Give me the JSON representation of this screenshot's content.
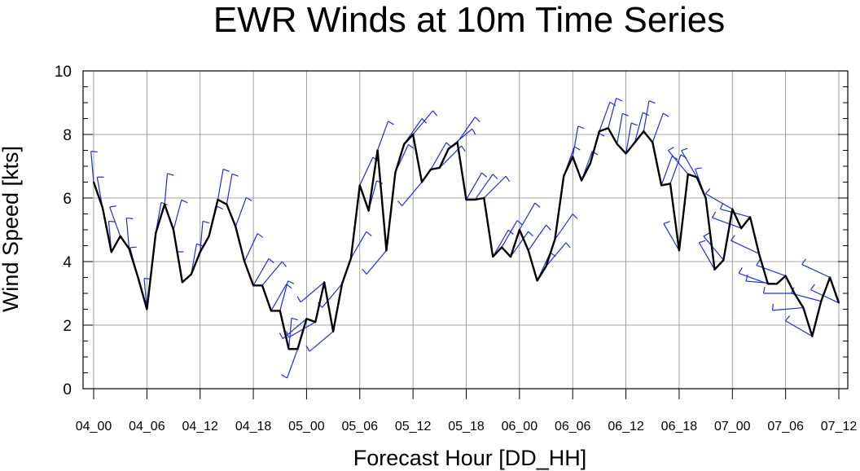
{
  "chart_data": {
    "type": "line",
    "title": "EWR Winds at 10m Time Series",
    "xlabel": "Forecast Hour [DD_HH]",
    "ylabel": "Wind Speed [kts]",
    "ylim": [
      0,
      10
    ],
    "yticks": [
      0,
      2,
      4,
      6,
      8,
      10
    ],
    "xlim": [
      0,
      84
    ],
    "xticks": [
      0,
      6,
      12,
      18,
      24,
      30,
      36,
      42,
      48,
      54,
      60,
      66,
      72,
      78,
      84
    ],
    "xtick_labels": [
      "04_00",
      "04_06",
      "04_12",
      "04_18",
      "05_00",
      "05_06",
      "05_12",
      "05_18",
      "06_00",
      "06_06",
      "06_12",
      "06_18",
      "07_00",
      "07_06",
      "07_12"
    ],
    "grid": true,
    "line_color": "#000000",
    "barb_color": "#1f2fd6",
    "series": [
      {
        "x": [
          0,
          1,
          2,
          3,
          4,
          5,
          6,
          7,
          8,
          9,
          10,
          11,
          12,
          13,
          14,
          15,
          16,
          17,
          18,
          19,
          20,
          21,
          22,
          23,
          24,
          25,
          26,
          27,
          28,
          29,
          30,
          31,
          32,
          33,
          34,
          35,
          36,
          37,
          38,
          39,
          40,
          41,
          42,
          43,
          44,
          45,
          46,
          47,
          48,
          49,
          50,
          51,
          52,
          53,
          54,
          55,
          56,
          57,
          58,
          59,
          60,
          61,
          62,
          63,
          64,
          65,
          66,
          67,
          68,
          69,
          70,
          71,
          72,
          73,
          74,
          75,
          76,
          77,
          78,
          79,
          80,
          81,
          82,
          83,
          84
        ],
        "values": [
          6.5,
          5.7,
          4.3,
          4.8,
          4.4,
          3.5,
          2.5,
          4.9,
          5.8,
          5.0,
          3.35,
          3.6,
          4.3,
          4.8,
          5.95,
          5.8,
          5.1,
          4.0,
          3.25,
          3.25,
          2.45,
          2.45,
          1.25,
          1.25,
          2.2,
          2.1,
          3.35,
          1.8,
          3.3,
          4.1,
          6.4,
          5.6,
          7.5,
          4.35,
          6.8,
          7.7,
          8.0,
          6.5,
          6.9,
          6.95,
          7.55,
          7.75,
          5.95,
          5.95,
          6.0,
          4.15,
          4.45,
          4.15,
          5.0,
          4.35,
          3.4,
          3.85,
          4.7,
          6.7,
          7.3,
          6.55,
          7.1,
          8.1,
          8.2,
          7.7,
          7.4,
          7.75,
          8.1,
          7.75,
          6.4,
          6.45,
          4.35,
          6.75,
          6.65,
          6.0,
          3.75,
          4.05,
          5.65,
          5.05,
          5.4,
          4.25,
          3.3,
          3.3,
          3.55,
          3.0,
          2.55,
          1.65,
          2.75,
          3.5,
          2.7
        ]
      }
    ],
    "barb_directions_deg": [
      355,
      350,
      355,
      340,
      355,
      345,
      355,
      10,
      5,
      15,
      350,
      10,
      5,
      15,
      10,
      10,
      20,
      25,
      30,
      40,
      30,
      15,
      5,
      200,
      230,
      240,
      230,
      230,
      220,
      30,
      25,
      15,
      20,
      220,
      25,
      35,
      40,
      220,
      30,
      45,
      50,
      35,
      30,
      35,
      45,
      30,
      30,
      35,
      30,
      35,
      25,
      40,
      35,
      20,
      10,
      20,
      15,
      20,
      15,
      10,
      10,
      15,
      10,
      20,
      20,
      20,
      330,
      320,
      330,
      340,
      330,
      320,
      300,
      290,
      285,
      295,
      290,
      275,
      290,
      270,
      265,
      300,
      285,
      295,
      295
    ]
  }
}
